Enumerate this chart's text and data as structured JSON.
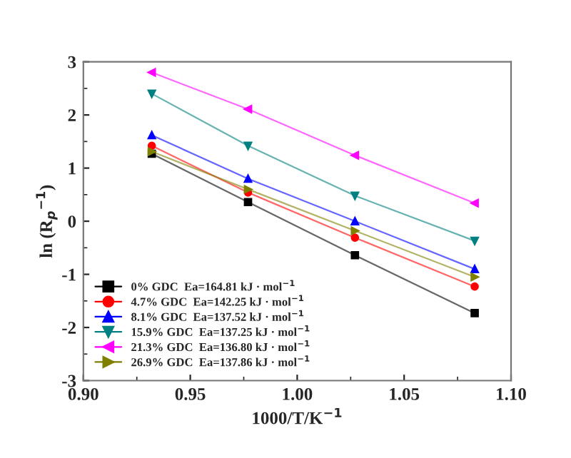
{
  "chart_data": {
    "type": "line",
    "xlabel": "1000/T/K$^{−1}$",
    "ylabel": "ln (R$_{p}$$^{−1}$)",
    "x": [
      0.932,
      0.977,
      1.027,
      1.083
    ],
    "series": [
      {
        "name": "0% GDC  Ea=164.81 kJ · mol$^{−1}$",
        "color": "#000000",
        "marker": "square",
        "values": [
          1.27,
          0.36,
          -0.64,
          -1.73
        ]
      },
      {
        "name": "4.7% GDC  Ea=142.25 kJ · mol$^{−1}$",
        "color": "#ff0000",
        "marker": "circle",
        "values": [
          1.42,
          0.54,
          -0.31,
          -1.23
        ]
      },
      {
        "name": "8.1% GDC  Ea=137.52 kJ · mol$^{−1}$",
        "color": "#0000ff",
        "marker": "triangle",
        "values": [
          1.62,
          0.8,
          0.0,
          -0.9
        ]
      },
      {
        "name": "15.9% GDC  Ea=137.25 kJ · mol$^{−1}$",
        "color": "#008080",
        "marker": "triangle_down",
        "values": [
          2.4,
          1.42,
          0.48,
          -0.37
        ]
      },
      {
        "name": "21.3% GDC  Ea=136.80 kJ · mol$^{−1}$",
        "color": "#ff00ff",
        "marker": "triangle_left",
        "values": [
          2.8,
          2.11,
          1.24,
          0.34
        ]
      },
      {
        "name": "26.9% GDC  Ea=137.86 kJ · mol$^{−1}$",
        "color": "#808000",
        "marker": "triangle_right",
        "values": [
          1.31,
          0.6,
          -0.18,
          -1.05
        ]
      }
    ],
    "xlim": [
      0.9,
      1.1
    ],
    "xticks": [
      {
        "value": 0.9,
        "label": "0.90"
      },
      0.95,
      {
        "value": 1.0,
        "label": "1.00"
      },
      1.05,
      {
        "value": 1.1,
        "label": "1.10"
      }
    ],
    "ylim": [
      -3,
      3
    ],
    "yticks": [
      -3,
      -2,
      -1,
      0,
      1,
      2,
      3
    ],
    "grid": false,
    "legend": "bottom left"
  }
}
